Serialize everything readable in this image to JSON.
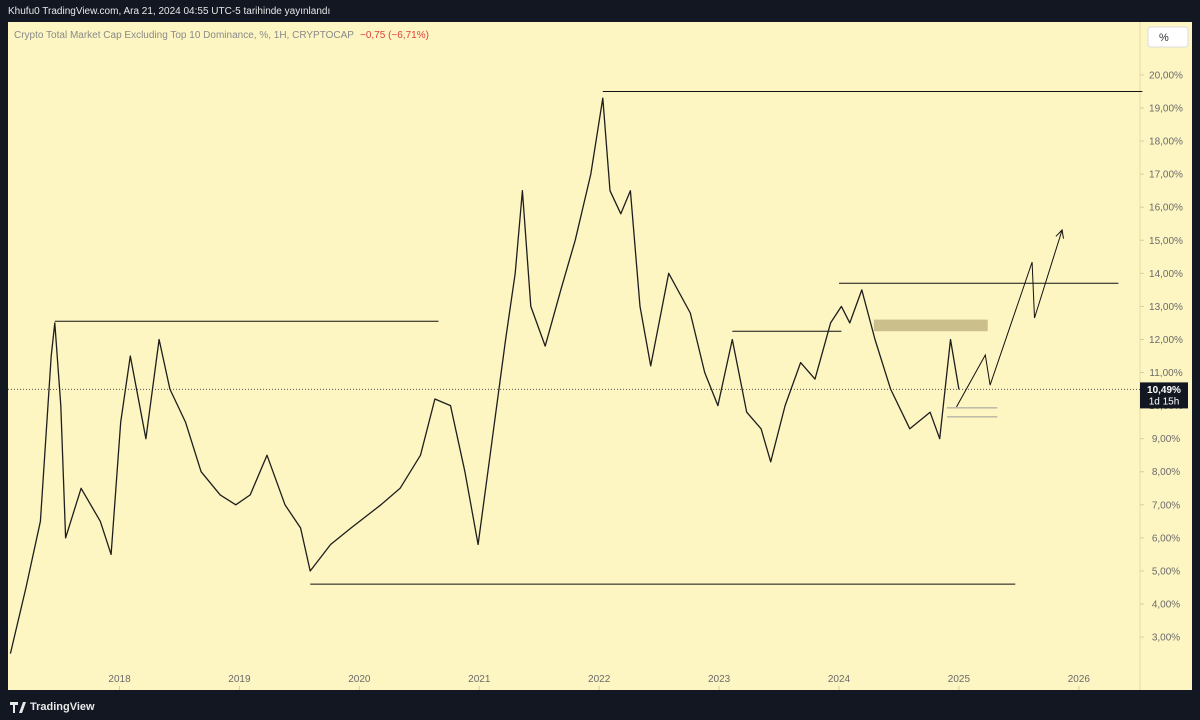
{
  "header": {
    "publisher": "Khufu0 TradingView.com, Ara 21, 2024 04:55 UTC-5 tarihinde yayınlandı"
  },
  "chart_data": {
    "type": "line",
    "title": "Crypto Total Market Cap Excluding Top 10 Dominance, %, 1H, CRYPTOCAP",
    "change": "−0,75 (−6,71%)",
    "scale_button": "%",
    "color": "#1e1e1e",
    "x": [
      2017.09,
      2017.22,
      2017.34,
      2017.43,
      2017.46,
      2017.51,
      2017.55,
      2017.68,
      2017.84,
      2017.93,
      2018.01,
      2018.09,
      2018.22,
      2018.33,
      2018.42,
      2018.55,
      2018.68,
      2018.84,
      2018.97,
      2019.09,
      2019.23,
      2019.38,
      2019.51,
      2019.59,
      2019.76,
      2019.93,
      2020.18,
      2020.34,
      2020.51,
      2020.63,
      2020.76,
      2020.88,
      2020.99,
      2021.09,
      2021.22,
      2021.3,
      2021.36,
      2021.43,
      2021.55,
      2021.68,
      2021.8,
      2021.93,
      2022.03,
      2022.09,
      2022.18,
      2022.26,
      2022.34,
      2022.43,
      2022.58,
      2022.76,
      2022.88,
      2022.99,
      2023.11,
      2023.23,
      2023.35,
      2023.43,
      2023.55,
      2023.68,
      2023.8,
      2023.93,
      2024.02,
      2024.09,
      2024.19,
      2024.3,
      2024.43,
      2024.59,
      2024.76,
      2024.84,
      2024.93,
      2025.0
    ],
    "values": [
      2.5,
      4.5,
      6.5,
      11.5,
      12.5,
      10,
      6.0,
      7.5,
      6.5,
      5.5,
      9.5,
      11.5,
      9,
      12.0,
      10.5,
      9.5,
      8,
      7.3,
      7.0,
      7.3,
      8.5,
      7.0,
      6.3,
      5.0,
      5.8,
      6.3,
      7.0,
      7.5,
      8.5,
      10.2,
      10.0,
      8.0,
      5.8,
      8.5,
      12,
      14,
      16.5,
      13,
      11.8,
      13.5,
      15,
      17,
      19.3,
      16.5,
      15.8,
      16.5,
      13,
      11.2,
      14.0,
      12.8,
      11.0,
      10.0,
      12.0,
      9.8,
      9.3,
      8.3,
      10.0,
      11.3,
      10.8,
      12.5,
      13.0,
      12.5,
      13.5,
      12.0,
      10.5,
      9.3,
      9.8,
      9.0,
      12.0,
      10.49
    ],
    "xlim": [
      2017.07,
      2026.51
    ],
    "ylim": [
      1.4,
      21.6
    ],
    "xticks": [
      2018,
      2019,
      2020,
      2021,
      2022,
      2023,
      2024,
      2025,
      2026
    ],
    "yticks": [
      {
        "value": 3,
        "label": "3,00%"
      },
      {
        "value": 4,
        "label": "4,00%"
      },
      {
        "value": 5,
        "label": "5,00%"
      },
      {
        "value": 6,
        "label": "6,00%"
      },
      {
        "value": 7,
        "label": "7,00%"
      },
      {
        "value": 8,
        "label": "8,00%"
      },
      {
        "value": 9,
        "label": "9,00%"
      },
      {
        "value": 10,
        "label": "10,00%"
      },
      {
        "value": 11,
        "label": "11,00%"
      },
      {
        "value": 12,
        "label": "12,00%"
      },
      {
        "value": 13,
        "label": "13,00%"
      },
      {
        "value": 14,
        "label": "14,00%"
      },
      {
        "value": 15,
        "label": "15,00%"
      },
      {
        "value": 16,
        "label": "16,00%"
      },
      {
        "value": 17,
        "label": "17,00%"
      },
      {
        "value": 18,
        "label": "18,00%"
      },
      {
        "value": 19,
        "label": "19,00%"
      },
      {
        "value": 20,
        "label": "20,00%"
      }
    ],
    "last": {
      "value": 10.49,
      "label": "10,49%",
      "countdown": "1d 15h"
    },
    "levels": [
      {
        "value": 12.55,
        "x": [
          2017.46,
          2020.66
        ],
        "color": "#111111"
      },
      {
        "value": 19.5,
        "x": [
          2022.03,
          2026.53
        ],
        "color": "#111111"
      },
      {
        "value": 4.6,
        "x": [
          2019.59,
          2025.47
        ],
        "color": "#111111"
      },
      {
        "value": 12.25,
        "x": [
          2023.11,
          2024.02
        ],
        "color": "#111111"
      },
      {
        "value": 13.7,
        "x": [
          2024.0,
          2026.33
        ],
        "color": "#111111"
      },
      {
        "value": 9.93,
        "x": [
          2024.9,
          2025.32
        ],
        "color": "#9a9a9a"
      },
      {
        "value": 9.66,
        "x": [
          2024.9,
          2025.32
        ],
        "color": "#9a9a9a"
      }
    ],
    "zones": [
      {
        "y": [
          12.25,
          12.6
        ],
        "x": [
          2024.29,
          2025.24
        ],
        "color": "#cbbf8c"
      }
    ],
    "projection": {
      "x": [
        2024.98,
        2025.22,
        2025.26,
        2025.61,
        2025.63,
        2025.86
      ],
      "y": [
        9.96,
        11.53,
        10.62,
        14.34,
        12.65,
        15.31
      ]
    }
  },
  "footer": {
    "brand": "TradingView"
  }
}
